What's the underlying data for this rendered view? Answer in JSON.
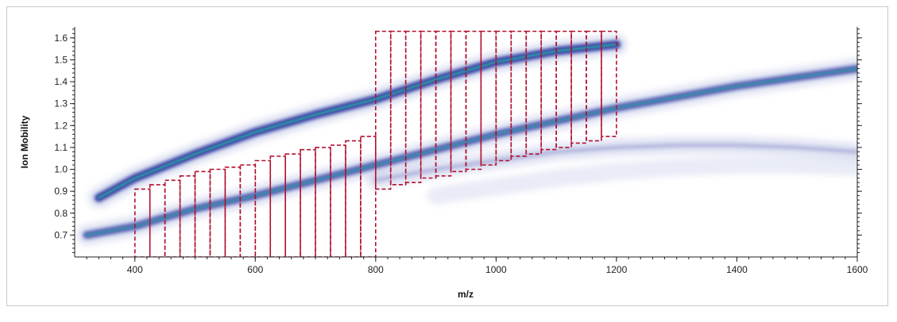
{
  "chart_data": {
    "type": "heatmap",
    "xlabel": "m/z",
    "ylabel": "Ion Mobility",
    "xlim": [
      300,
      1600
    ],
    "ylim": [
      0.6,
      1.65
    ],
    "x_ticks": [
      400,
      600,
      800,
      1000,
      1200,
      1400,
      1600
    ],
    "y_ticks": [
      0.7,
      0.8,
      0.9,
      1.0,
      1.1,
      1.2,
      1.3,
      1.4,
      1.5,
      1.6
    ],
    "grid": false,
    "bands": [
      {
        "points": [
          [
            340,
            0.87
          ],
          [
            400,
            0.96
          ],
          [
            500,
            1.07
          ],
          [
            600,
            1.17
          ],
          [
            700,
            1.25
          ],
          [
            800,
            1.32
          ],
          [
            900,
            1.41
          ],
          [
            1000,
            1.49
          ],
          [
            1100,
            1.54
          ],
          [
            1200,
            1.57
          ]
        ],
        "intensity": "high"
      },
      {
        "points": [
          [
            320,
            0.7
          ],
          [
            400,
            0.74
          ],
          [
            500,
            0.82
          ],
          [
            600,
            0.88
          ],
          [
            700,
            0.95
          ],
          [
            800,
            1.02
          ],
          [
            900,
            1.09
          ],
          [
            1000,
            1.16
          ],
          [
            1100,
            1.22
          ],
          [
            1200,
            1.28
          ],
          [
            1300,
            1.33
          ],
          [
            1400,
            1.38
          ],
          [
            1500,
            1.42
          ],
          [
            1600,
            1.46
          ]
        ],
        "intensity": "medium"
      },
      {
        "points": [
          [
            800,
            0.95
          ],
          [
            900,
            1.0
          ],
          [
            1000,
            1.04
          ],
          [
            1100,
            1.08
          ],
          [
            1200,
            1.1
          ],
          [
            1300,
            1.11
          ],
          [
            1400,
            1.11
          ],
          [
            1500,
            1.1
          ],
          [
            1600,
            1.08
          ]
        ],
        "intensity": "low"
      },
      {
        "points": [
          [
            900,
            0.88
          ],
          [
            1000,
            0.92
          ],
          [
            1100,
            0.96
          ],
          [
            1200,
            0.99
          ],
          [
            1300,
            1.01
          ],
          [
            1400,
            1.02
          ],
          [
            1500,
            1.02
          ],
          [
            1600,
            1.01
          ]
        ],
        "intensity": "faint"
      }
    ],
    "windows": [
      {
        "x0": 400,
        "x1": 425,
        "y_low": 0.6,
        "y_high": 0.91
      },
      {
        "x0": 425,
        "x1": 450,
        "y_low": 0.6,
        "y_high": 0.93
      },
      {
        "x0": 450,
        "x1": 475,
        "y_low": 0.6,
        "y_high": 0.95
      },
      {
        "x0": 475,
        "x1": 500,
        "y_low": 0.6,
        "y_high": 0.97
      },
      {
        "x0": 500,
        "x1": 525,
        "y_low": 0.6,
        "y_high": 0.99
      },
      {
        "x0": 525,
        "x1": 550,
        "y_low": 0.6,
        "y_high": 1.0
      },
      {
        "x0": 550,
        "x1": 575,
        "y_low": 0.6,
        "y_high": 1.01
      },
      {
        "x0": 575,
        "x1": 600,
        "y_low": 0.6,
        "y_high": 1.02
      },
      {
        "x0": 600,
        "x1": 625,
        "y_low": 0.6,
        "y_high": 1.04
      },
      {
        "x0": 625,
        "x1": 650,
        "y_low": 0.6,
        "y_high": 1.06
      },
      {
        "x0": 650,
        "x1": 675,
        "y_low": 0.6,
        "y_high": 1.07
      },
      {
        "x0": 675,
        "x1": 700,
        "y_low": 0.6,
        "y_high": 1.09
      },
      {
        "x0": 700,
        "x1": 725,
        "y_low": 0.6,
        "y_high": 1.1
      },
      {
        "x0": 725,
        "x1": 750,
        "y_low": 0.6,
        "y_high": 1.11
      },
      {
        "x0": 750,
        "x1": 775,
        "y_low": 0.6,
        "y_high": 1.13
      },
      {
        "x0": 775,
        "x1": 800,
        "y_low": 0.6,
        "y_high": 1.15
      },
      {
        "x0": 800,
        "x1": 825,
        "y_low": 0.91,
        "y_high": 1.63
      },
      {
        "x0": 825,
        "x1": 850,
        "y_low": 0.93,
        "y_high": 1.63
      },
      {
        "x0": 850,
        "x1": 875,
        "y_low": 0.94,
        "y_high": 1.63
      },
      {
        "x0": 875,
        "x1": 900,
        "y_low": 0.96,
        "y_high": 1.63
      },
      {
        "x0": 900,
        "x1": 925,
        "y_low": 0.97,
        "y_high": 1.63
      },
      {
        "x0": 925,
        "x1": 950,
        "y_low": 0.99,
        "y_high": 1.63
      },
      {
        "x0": 950,
        "x1": 975,
        "y_low": 1.0,
        "y_high": 1.63
      },
      {
        "x0": 975,
        "x1": 1000,
        "y_low": 1.02,
        "y_high": 1.63
      },
      {
        "x0": 1000,
        "x1": 1025,
        "y_low": 1.04,
        "y_high": 1.63
      },
      {
        "x0": 1025,
        "x1": 1050,
        "y_low": 1.06,
        "y_high": 1.63
      },
      {
        "x0": 1050,
        "x1": 1075,
        "y_low": 1.07,
        "y_high": 1.63
      },
      {
        "x0": 1075,
        "x1": 1100,
        "y_low": 1.09,
        "y_high": 1.63
      },
      {
        "x0": 1100,
        "x1": 1125,
        "y_low": 1.1,
        "y_high": 1.63
      },
      {
        "x0": 1125,
        "x1": 1150,
        "y_low": 1.12,
        "y_high": 1.63
      },
      {
        "x0": 1150,
        "x1": 1175,
        "y_low": 1.13,
        "y_high": 1.63
      },
      {
        "x0": 1175,
        "x1": 1200,
        "y_low": 1.15,
        "y_high": 1.63
      }
    ],
    "colors": {
      "window": "#b2102f",
      "band_high": "#1f2f9a",
      "band_core": "#2aa3a6",
      "band_low": "#9aa3d6",
      "axis": "#222222",
      "frame": "#c8c8c8"
    }
  }
}
